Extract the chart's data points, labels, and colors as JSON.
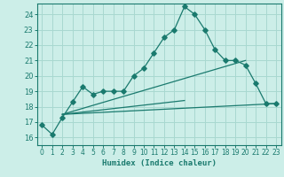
{
  "title": "",
  "xlabel": "Humidex (Indice chaleur)",
  "ylabel": "",
  "background_color": "#cceee8",
  "plot_bg_color": "#cceee8",
  "grid_color": "#a8d8d0",
  "line_color": "#1a7a6e",
  "xlim": [
    -0.5,
    23.5
  ],
  "ylim": [
    15.5,
    24.7
  ],
  "xticks": [
    0,
    1,
    2,
    3,
    4,
    5,
    6,
    7,
    8,
    9,
    10,
    11,
    12,
    13,
    14,
    15,
    16,
    17,
    18,
    19,
    20,
    21,
    22,
    23
  ],
  "yticks": [
    16,
    17,
    18,
    19,
    20,
    21,
    22,
    23,
    24
  ],
  "main_series_x": [
    0,
    1,
    2,
    3,
    4,
    5,
    6,
    7,
    8,
    9,
    10,
    11,
    12,
    13,
    14,
    15,
    16,
    17,
    18,
    19,
    20,
    21,
    22,
    23
  ],
  "main_series_y": [
    16.8,
    16.2,
    17.3,
    18.3,
    19.3,
    18.8,
    19.0,
    19.0,
    19.0,
    20.0,
    20.5,
    21.5,
    22.5,
    23.0,
    24.5,
    24.0,
    23.0,
    21.7,
    21.0,
    21.0,
    20.7,
    19.5,
    18.2,
    18.2
  ],
  "line1_x": [
    2,
    23
  ],
  "line1_y": [
    17.5,
    18.2
  ],
  "line2_x": [
    2,
    20
  ],
  "line2_y": [
    17.5,
    21.0
  ],
  "line3_x": [
    2,
    14
  ],
  "line3_y": [
    17.5,
    18.4
  ]
}
